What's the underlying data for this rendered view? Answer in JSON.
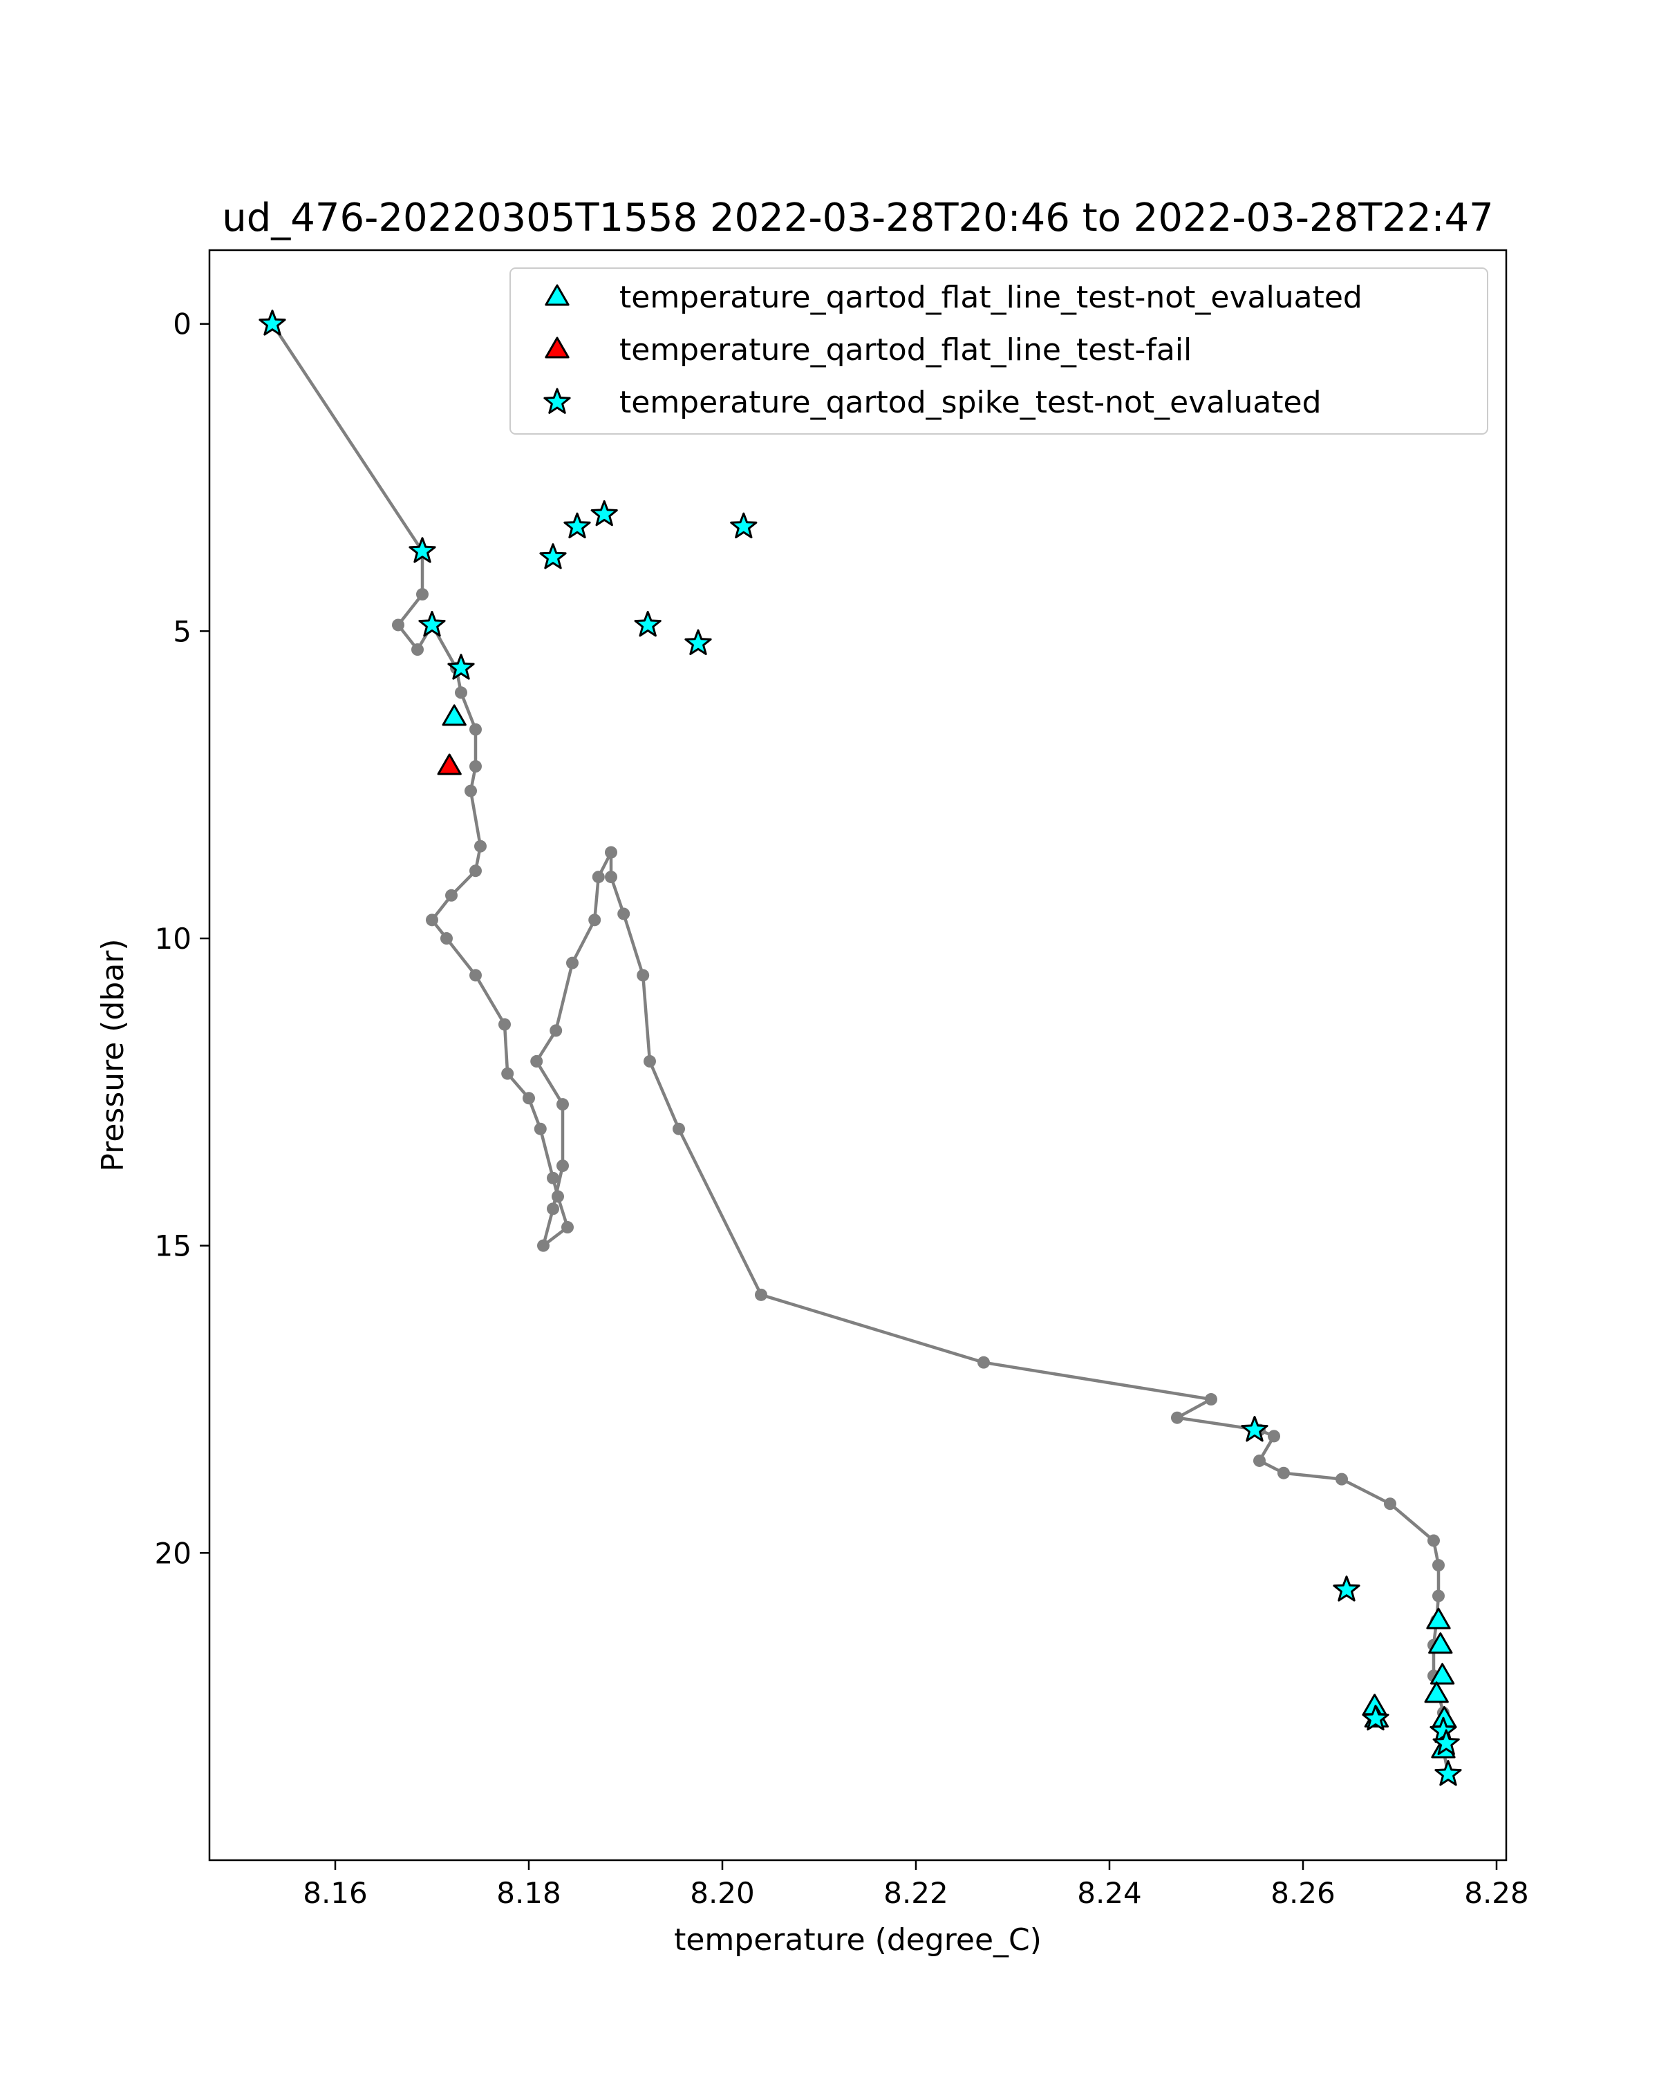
{
  "chart_data": {
    "type": "scatter",
    "title": "ud_476-20220305T1558 2022-03-28T20:46 to 2022-03-28T22:47",
    "xlabel": "temperature (degree_C)",
    "ylabel": "Pressure (dbar)",
    "xlim": [
      8.147,
      8.281
    ],
    "ylim": [
      25.0,
      -1.2
    ],
    "y_inverted": true,
    "grid": false,
    "legend_position": "top-right",
    "x_ticks": [
      "8.16",
      "8.18",
      "8.20",
      "8.22",
      "8.24",
      "8.26",
      "8.28"
    ],
    "x_tick_values": [
      8.16,
      8.18,
      8.2,
      8.22,
      8.24,
      8.26,
      8.28
    ],
    "y_ticks": [
      "0",
      "5",
      "10",
      "15",
      "20"
    ],
    "y_tick_values": [
      0,
      5,
      10,
      15,
      20
    ],
    "profile_color": "#808080",
    "profile": {
      "x": [
        8.1535,
        8.169,
        8.169,
        8.1665,
        8.1685,
        8.17,
        8.1725,
        8.173,
        8.1745,
        8.1745,
        8.174,
        8.175,
        8.1745,
        8.172,
        8.17,
        8.1715,
        8.1745,
        8.1775,
        8.1778,
        8.18,
        8.1812,
        8.1825,
        8.183,
        8.184,
        8.1815,
        8.1825,
        8.1835,
        8.1835,
        8.1808,
        8.1828,
        8.1845,
        8.1868,
        8.1872,
        8.1885,
        8.1885,
        8.1898,
        8.1918,
        8.1925,
        8.1955,
        8.204,
        8.227,
        8.2505,
        8.247,
        8.2555,
        8.257,
        8.2555,
        8.258,
        8.264,
        8.269,
        8.2735,
        8.274,
        8.274,
        8.2738,
        8.2735,
        8.2735,
        8.2745,
        8.2745,
        8.275
      ],
      "y": [
        0.0,
        3.7,
        4.4,
        4.9,
        5.3,
        4.9,
        5.6,
        6.0,
        6.6,
        7.2,
        7.6,
        8.5,
        8.9,
        9.3,
        9.7,
        10.0,
        10.6,
        11.4,
        12.2,
        12.6,
        13.1,
        13.9,
        14.2,
        14.7,
        15.0,
        14.4,
        13.7,
        12.7,
        12.0,
        11.5,
        10.4,
        9.7,
        9.0,
        8.6,
        9.0,
        9.6,
        10.6,
        12.0,
        13.1,
        15.8,
        16.9,
        17.5,
        17.8,
        18.0,
        18.1,
        18.5,
        18.7,
        18.8,
        19.2,
        19.8,
        20.2,
        20.7,
        21.1,
        21.5,
        22.0,
        22.6,
        23.2,
        23.6
      ]
    },
    "series": [
      {
        "name": "temperature_qartod_flat_line_test-not_evaluated",
        "marker": "triangle",
        "color": "#00ffff",
        "x": [
          8.1723,
          8.274,
          8.2742,
          8.2744,
          8.2738,
          8.2746,
          8.2674,
          8.2676,
          8.2745
        ],
        "y": [
          6.4,
          21.1,
          21.5,
          22.0,
          22.3,
          22.7,
          22.5,
          22.7,
          23.2
        ]
      },
      {
        "name": "temperature_qartod_flat_line_test-fail",
        "marker": "triangle",
        "color": "#ff0000",
        "x": [
          8.1718
        ],
        "y": [
          7.2
        ]
      },
      {
        "name": "temperature_qartod_spike_test-not_evaluated",
        "marker": "star",
        "color": "#00ffff",
        "x": [
          8.1535,
          8.169,
          8.17,
          8.173,
          8.1825,
          8.185,
          8.1878,
          8.2022,
          8.1923,
          8.1975,
          8.255,
          8.2645,
          8.2675,
          8.2745,
          8.275,
          8.2748
        ],
        "y": [
          0.0,
          3.7,
          4.9,
          5.6,
          3.8,
          3.3,
          3.1,
          3.3,
          4.9,
          5.2,
          18.0,
          20.6,
          22.7,
          22.9,
          23.6,
          23.1
        ]
      }
    ]
  }
}
